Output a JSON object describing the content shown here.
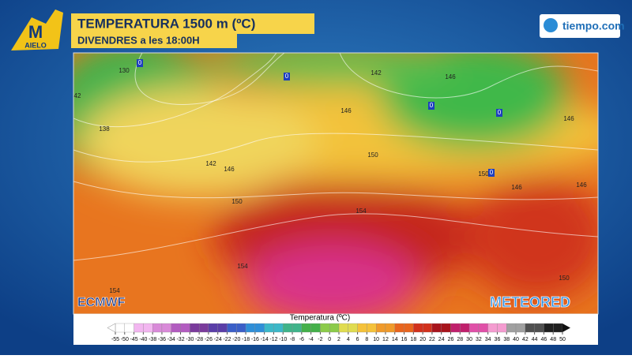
{
  "header": {
    "title": "TEMPERATURA 1500 m (ºC)",
    "subtitle": "DIVENDRES a les 18:00H"
  },
  "logo": {
    "text": "AIELO",
    "brand": "tiempo.com"
  },
  "map": {
    "contour_labels": [
      "130",
      "142",
      "146",
      "42",
      "146",
      "146",
      "138",
      "150",
      "142",
      "146",
      "150",
      "146",
      "146",
      "150",
      "154",
      "154",
      "150",
      "154"
    ],
    "low_markers": [
      "0",
      "0",
      "0",
      "0",
      "0"
    ],
    "sources": [
      "ECMWF",
      "METEORED"
    ]
  },
  "legend": {
    "title": "Temperatura (ºC)",
    "ticks": [
      -55,
      -50,
      -45,
      -40,
      -38,
      -36,
      -34,
      -32,
      -30,
      -28,
      -26,
      -24,
      -22,
      -20,
      -18,
      -16,
      -14,
      -12,
      -10,
      -8,
      -6,
      -4,
      -2,
      0,
      2,
      4,
      6,
      8,
      10,
      12,
      14,
      16,
      18,
      20,
      22,
      24,
      26,
      28,
      30,
      32,
      34,
      36,
      38,
      40,
      42,
      44,
      46,
      48,
      50
    ]
  }
}
